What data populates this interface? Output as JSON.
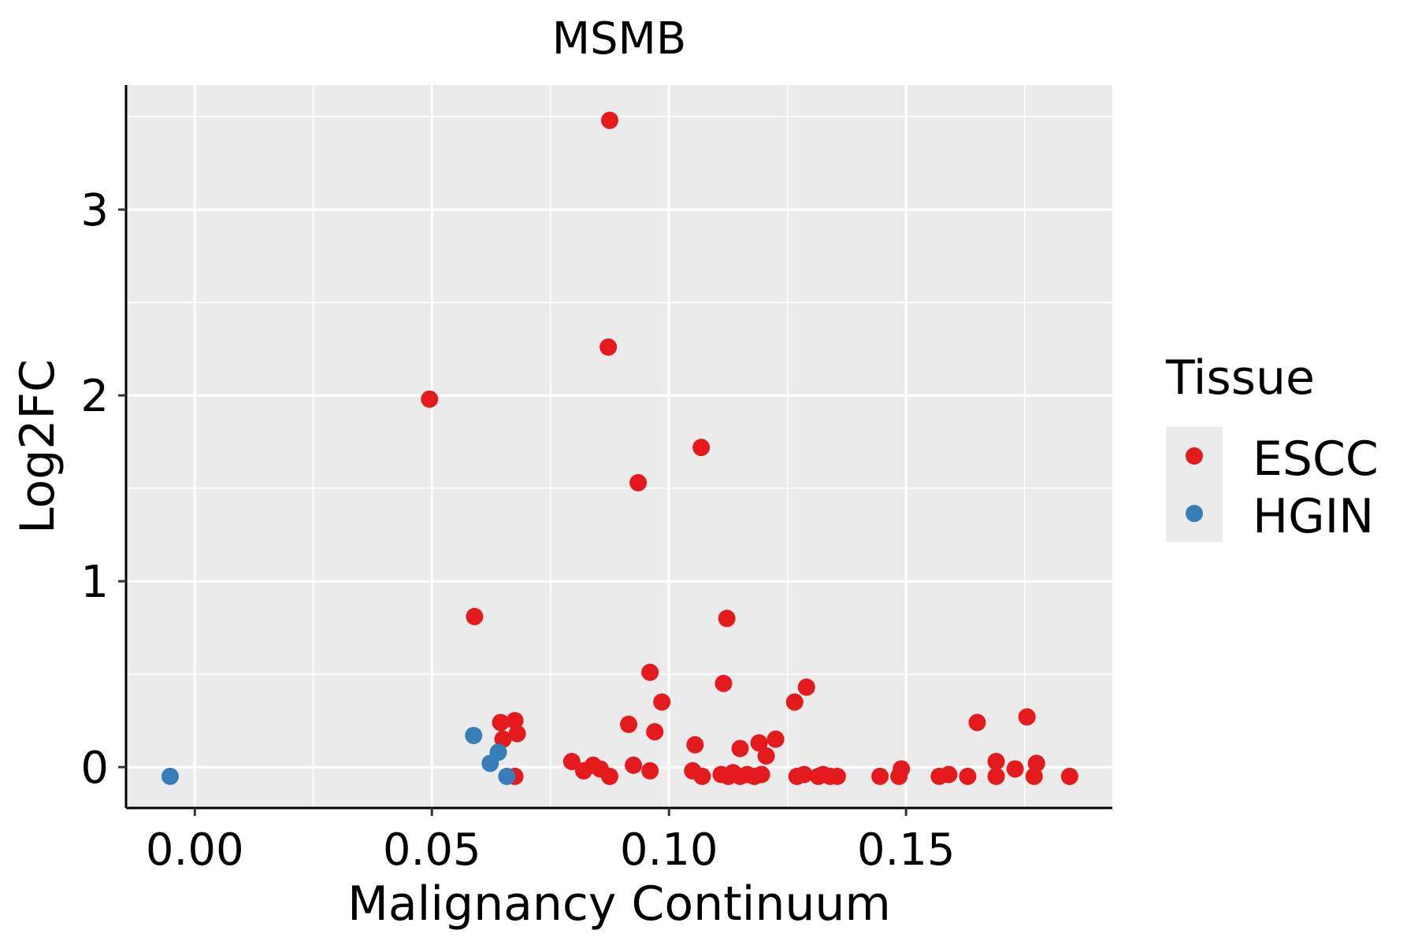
{
  "chart_data": {
    "type": "scatter",
    "title": "MSMB",
    "xlabel": "Malignancy Continuum",
    "ylabel": "Log2FC",
    "xlim": [
      -0.0145,
      0.1935
    ],
    "ylim": [
      -0.22,
      3.67
    ],
    "xticks": [
      0.0,
      0.05,
      0.1,
      0.15
    ],
    "xtick_labels": [
      "0.00",
      "0.05",
      "0.10",
      "0.15"
    ],
    "yticks": [
      0,
      1,
      2,
      3
    ],
    "ytick_labels": [
      "0",
      "1",
      "2",
      "3"
    ],
    "grid": true,
    "legend": {
      "title": "Tissue",
      "position": "right"
    },
    "series": [
      {
        "name": "ESCC",
        "color": "#E41A1C",
        "points": [
          [
            0.0875,
            3.48
          ],
          [
            0.0872,
            2.26
          ],
          [
            0.0495,
            1.98
          ],
          [
            0.1068,
            1.72
          ],
          [
            0.0935,
            1.53
          ],
          [
            0.059,
            0.81
          ],
          [
            0.1122,
            0.8
          ],
          [
            0.096,
            0.51
          ],
          [
            0.1115,
            0.45
          ],
          [
            0.129,
            0.43
          ],
          [
            0.0985,
            0.35
          ],
          [
            0.1265,
            0.35
          ],
          [
            0.1755,
            0.27
          ],
          [
            0.0645,
            0.24
          ],
          [
            0.0675,
            0.25
          ],
          [
            0.165,
            0.24
          ],
          [
            0.0915,
            0.23
          ],
          [
            0.097,
            0.19
          ],
          [
            0.068,
            0.18
          ],
          [
            0.065,
            0.15
          ],
          [
            0.1055,
            0.12
          ],
          [
            0.119,
            0.13
          ],
          [
            0.1225,
            0.15
          ],
          [
            0.115,
            0.1
          ],
          [
            0.1205,
            0.06
          ],
          [
            0.0795,
            0.03
          ],
          [
            0.084,
            0.01
          ],
          [
            0.0925,
            0.01
          ],
          [
            0.169,
            0.03
          ],
          [
            0.1775,
            0.02
          ],
          [
            0.082,
            -0.02
          ],
          [
            0.0855,
            -0.01
          ],
          [
            0.096,
            -0.02
          ],
          [
            0.105,
            -0.02
          ],
          [
            0.149,
            -0.01
          ],
          [
            0.173,
            -0.01
          ],
          [
            0.0875,
            -0.05
          ],
          [
            0.0675,
            -0.05
          ],
          [
            0.107,
            -0.05
          ],
          [
            0.111,
            -0.04
          ],
          [
            0.1125,
            -0.05
          ],
          [
            0.1135,
            -0.03
          ],
          [
            0.115,
            -0.05
          ],
          [
            0.1165,
            -0.04
          ],
          [
            0.118,
            -0.05
          ],
          [
            0.1195,
            -0.04
          ],
          [
            0.127,
            -0.05
          ],
          [
            0.1285,
            -0.04
          ],
          [
            0.1315,
            -0.05
          ],
          [
            0.1325,
            -0.04
          ],
          [
            0.134,
            -0.05
          ],
          [
            0.1355,
            -0.05
          ],
          [
            0.1445,
            -0.05
          ],
          [
            0.1485,
            -0.05
          ],
          [
            0.157,
            -0.05
          ],
          [
            0.159,
            -0.04
          ],
          [
            0.163,
            -0.05
          ],
          [
            0.169,
            -0.05
          ],
          [
            0.177,
            -0.05
          ],
          [
            0.1845,
            -0.05
          ]
        ]
      },
      {
        "name": "HGIN",
        "color": "#377EB8",
        "points": [
          [
            -0.0052,
            -0.05
          ],
          [
            0.0588,
            0.17
          ],
          [
            0.064,
            0.08
          ],
          [
            0.0623,
            0.02
          ],
          [
            0.0658,
            -0.05
          ]
        ]
      }
    ]
  }
}
